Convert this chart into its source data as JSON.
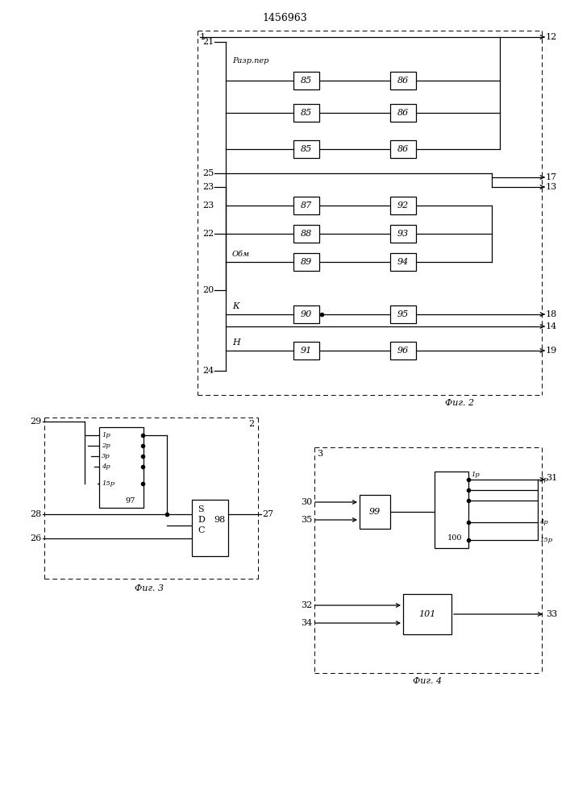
{
  "title": "1456963",
  "fig2_label": "Фиг. 2",
  "fig3_label": "Фиг. 3",
  "fig4_label": "Фиг. 4",
  "bg_color": "#ffffff",
  "line_color": "#000000",
  "box_color": "#ffffff",
  "font_size": 8,
  "title_font_size": 9
}
